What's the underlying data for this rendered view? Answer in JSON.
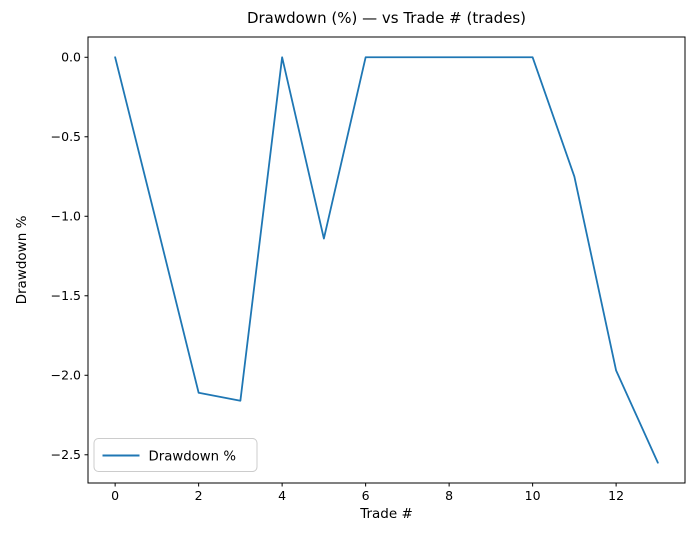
{
  "chart_data": {
    "type": "line",
    "title": "Drawdown (%) — vs Trade # (trades)",
    "xlabel": "Trade #",
    "ylabel": "Drawdown %",
    "x": [
      0,
      1,
      2,
      3,
      4,
      5,
      6,
      7,
      8,
      9,
      10,
      11,
      12,
      13
    ],
    "series": [
      {
        "name": "Drawdown %",
        "color": "#1f77b4",
        "values": [
          0.0,
          -1.05,
          -2.11,
          -2.16,
          0.0,
          -1.14,
          0.0,
          0.0,
          0.0,
          0.0,
          0.0,
          -0.75,
          -1.97,
          -2.55
        ]
      }
    ],
    "xlim": [
      -0.65,
      13.65
    ],
    "ylim": [
      -2.6775,
      0.1275
    ],
    "xticks": {
      "values": [
        0,
        2,
        4,
        6,
        8,
        10,
        12
      ],
      "labels": [
        "0",
        "2",
        "4",
        "6",
        "8",
        "10",
        "12"
      ]
    },
    "yticks": {
      "values": [
        0.0,
        -0.5,
        -1.0,
        -1.5,
        -2.0,
        -2.5
      ],
      "labels": [
        "0.0",
        "−0.5",
        "−1.0",
        "−1.5",
        "−2.0",
        "−2.5"
      ]
    },
    "grid": false,
    "legend": {
      "position": "lower left",
      "labels": [
        "Drawdown %"
      ]
    },
    "colors": {
      "line": "#1f77b4",
      "spine": "#000000",
      "tick": "#000000",
      "legend_edge": "#cccccc",
      "legend_face": "#ffffff",
      "background": "#ffffff"
    }
  }
}
